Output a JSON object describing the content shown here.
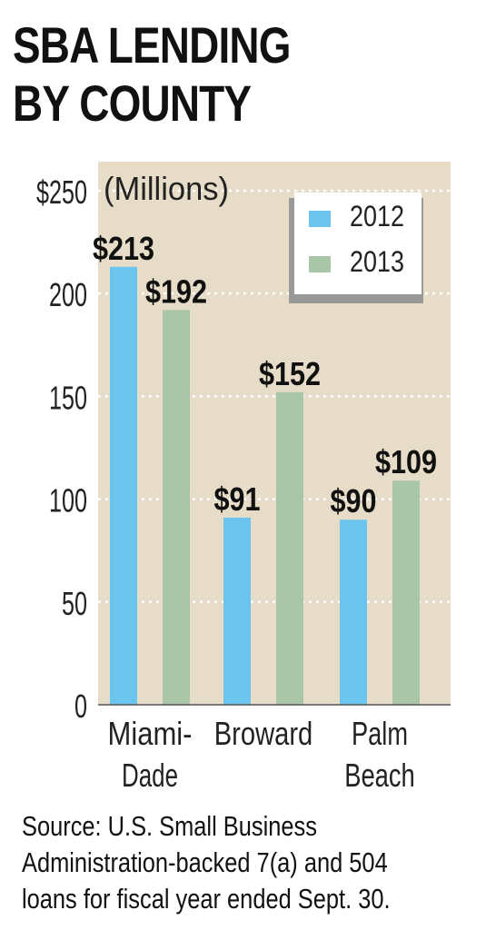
{
  "title_lines": [
    "SBA LENDING",
    "BY COUNTY"
  ],
  "chart_data": {
    "type": "bar",
    "unit_label": "(Millions)",
    "categories": [
      [
        "Miami-",
        "Dade"
      ],
      [
        "Broward"
      ],
      [
        "Palm",
        "Beach"
      ]
    ],
    "series": [
      {
        "name": "2012",
        "color": "#6cc5ef",
        "values": [
          213,
          91,
          90
        ],
        "labels": [
          "$213",
          "$91",
          "$90"
        ]
      },
      {
        "name": "2013",
        "color": "#a9c6a8",
        "values": [
          192,
          152,
          109
        ],
        "labels": [
          "$192",
          "$152",
          "$109"
        ]
      }
    ],
    "yticks": [
      {
        "value": 0,
        "label": "0"
      },
      {
        "value": 50,
        "label": "50"
      },
      {
        "value": 100,
        "label": "100"
      },
      {
        "value": 150,
        "label": "150"
      },
      {
        "value": 200,
        "label": "200"
      },
      {
        "value": 250,
        "label": "$250"
      }
    ],
    "ylim": [
      0,
      250
    ],
    "grid": true,
    "legend_position": "top-right",
    "plot_background": "#e6dcc7"
  },
  "source_lines": [
    "Source: U.S. Small Business",
    "Administration-backed 7(a) and 504",
    "loans for fiscal year ended Sept. 30."
  ]
}
